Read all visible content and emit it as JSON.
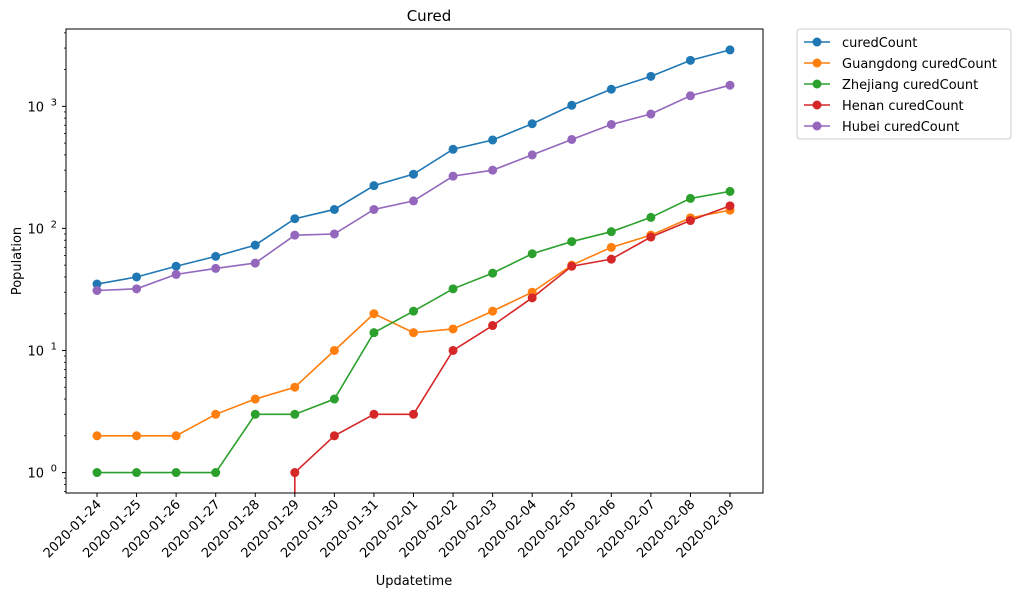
{
  "chart_data": {
    "type": "line",
    "title": "Cured",
    "xlabel": "Updatetime",
    "ylabel": "Population",
    "yscale": "log",
    "ylim": [
      0.68,
      4300
    ],
    "y_ticks": [
      {
        "value": 1,
        "base": "10",
        "exp": "0"
      },
      {
        "value": 10,
        "base": "10",
        "exp": "1"
      },
      {
        "value": 100,
        "base": "10",
        "exp": "2"
      },
      {
        "value": 1000,
        "base": "10",
        "exp": "3"
      }
    ],
    "grid": false,
    "legend_position": "outside-top-right",
    "x": [
      "2020-01-24",
      "2020-01-25",
      "2020-01-26",
      "2020-01-27",
      "2020-01-28",
      "2020-01-29",
      "2020-01-30",
      "2020-01-31",
      "2020-02-01",
      "2020-02-02",
      "2020-02-03",
      "2020-02-04",
      "2020-02-05",
      "2020-02-06",
      "2020-02-07",
      "2020-02-08",
      "2020-02-09"
    ],
    "series": [
      {
        "name": "curedCount",
        "color": "#1f77b4",
        "values": [
          35,
          40,
          49,
          59,
          73,
          120,
          143,
          224,
          278,
          445,
          530,
          720,
          1020,
          1380,
          1760,
          2380,
          2900
        ]
      },
      {
        "name": "Guangdong curedCount",
        "color": "#ff7f0e",
        "values": [
          2,
          2,
          2,
          3,
          4,
          5,
          10,
          20,
          14,
          15,
          21,
          30,
          50,
          70,
          88,
          122,
          141
        ]
      },
      {
        "name": "Zhejiang curedCount",
        "color": "#2ca02c",
        "values": [
          1,
          1,
          1,
          1,
          3,
          3,
          4,
          14,
          21,
          32,
          43,
          62,
          78,
          94,
          123,
          176,
          201
        ]
      },
      {
        "name": "Henan curedCount",
        "color": "#d62728",
        "values": [
          null,
          null,
          null,
          null,
          null,
          1,
          2,
          3,
          3,
          10,
          16,
          27,
          49,
          56,
          85,
          116,
          153
        ]
      },
      {
        "name": "Hubei curedCount",
        "color": "#9467bd",
        "values": [
          31,
          32,
          42,
          47,
          52,
          88,
          90,
          143,
          168,
          268,
          300,
          400,
          535,
          710,
          865,
          1220,
          1490
        ]
      }
    ]
  }
}
